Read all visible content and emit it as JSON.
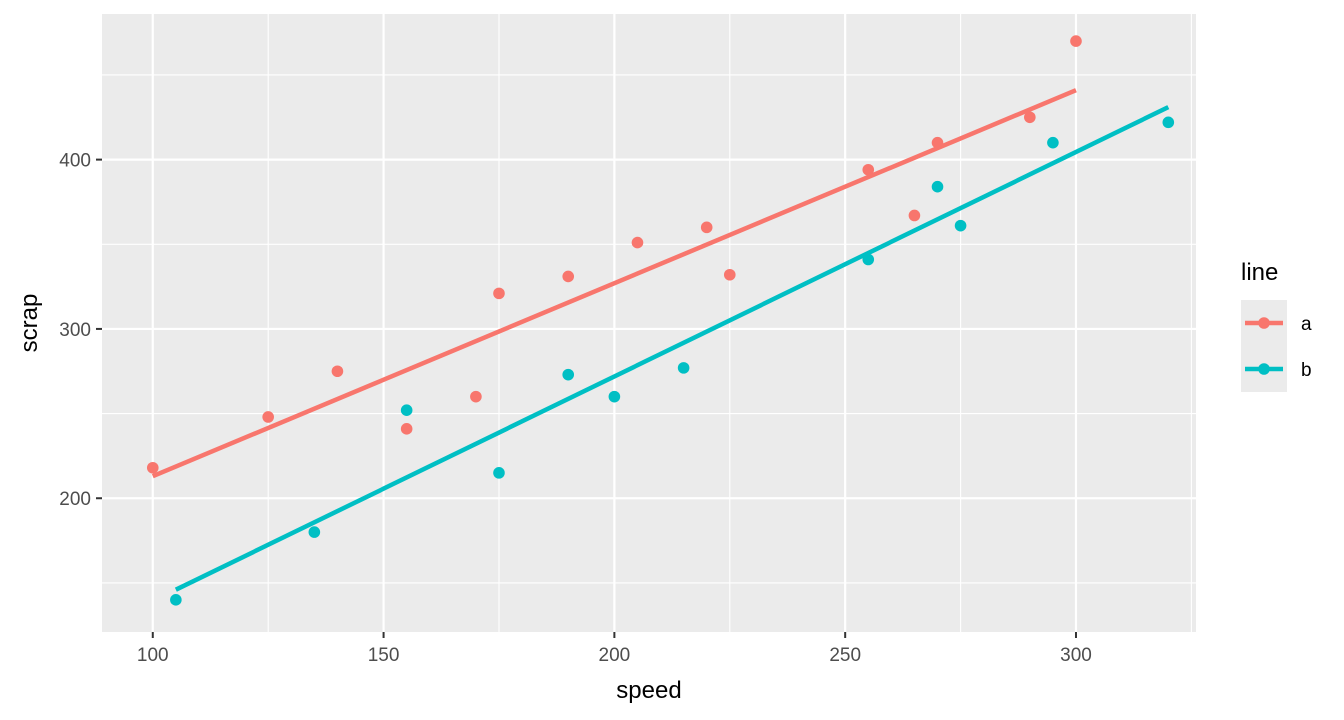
{
  "chart_data": {
    "type": "scatter",
    "title": "",
    "xlabel": "speed",
    "ylabel": "scrap",
    "xlim": [
      89,
      326
    ],
    "ylim": [
      121,
      486
    ],
    "x_ticks": [
      100,
      150,
      200,
      250,
      300
    ],
    "y_ticks": [
      200,
      300,
      400
    ],
    "x_tick_labels": [
      "100",
      "150",
      "200",
      "250",
      "300"
    ],
    "y_tick_labels": [
      "200",
      "300",
      "400"
    ],
    "grid": true,
    "legend": {
      "title": "line",
      "position": "right"
    },
    "series": [
      {
        "name": "a",
        "color": "#F8766D",
        "points": [
          {
            "x": 100,
            "y": 218
          },
          {
            "x": 125,
            "y": 248
          },
          {
            "x": 140,
            "y": 275
          },
          {
            "x": 155,
            "y": 241
          },
          {
            "x": 170,
            "y": 260
          },
          {
            "x": 175,
            "y": 321
          },
          {
            "x": 190,
            "y": 331
          },
          {
            "x": 205,
            "y": 351
          },
          {
            "x": 220,
            "y": 360
          },
          {
            "x": 225,
            "y": 332
          },
          {
            "x": 255,
            "y": 394
          },
          {
            "x": 265,
            "y": 367
          },
          {
            "x": 270,
            "y": 410
          },
          {
            "x": 290,
            "y": 425
          },
          {
            "x": 300,
            "y": 470
          }
        ],
        "fit": {
          "x": [
            100,
            300
          ],
          "y": [
            213,
            441
          ]
        }
      },
      {
        "name": "b",
        "color": "#00BFC4",
        "points": [
          {
            "x": 105,
            "y": 140
          },
          {
            "x": 135,
            "y": 180
          },
          {
            "x": 155,
            "y": 252
          },
          {
            "x": 175,
            "y": 215
          },
          {
            "x": 190,
            "y": 273
          },
          {
            "x": 200,
            "y": 260
          },
          {
            "x": 215,
            "y": 277
          },
          {
            "x": 255,
            "y": 341
          },
          {
            "x": 270,
            "y": 384
          },
          {
            "x": 275,
            "y": 361
          },
          {
            "x": 295,
            "y": 410
          },
          {
            "x": 320,
            "y": 422
          }
        ],
        "fit": {
          "x": [
            105,
            320
          ],
          "y": [
            146,
            431
          ]
        }
      }
    ]
  }
}
